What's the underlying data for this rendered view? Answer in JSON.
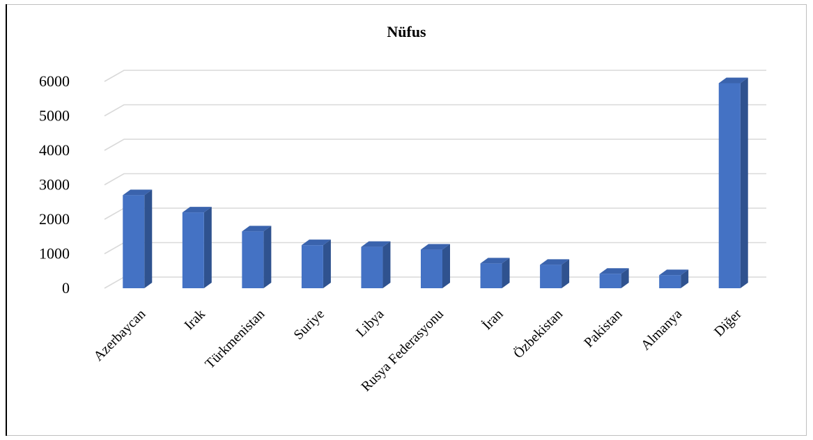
{
  "chart_data": {
    "type": "bar",
    "title": "Nüfus",
    "xlabel": "",
    "ylabel": "",
    "categories": [
      "Azerbaycan",
      "Irak",
      "Türkmenistan",
      "Suriye",
      "Libya",
      "Rusya Federasyonu",
      "İran",
      "Özbekistan",
      "Pakistan",
      "Almanya",
      "Diğer"
    ],
    "values": [
      2700,
      2200,
      1650,
      1250,
      1200,
      1120,
      720,
      680,
      420,
      380,
      5950
    ],
    "ylim": [
      0,
      6000
    ],
    "yticks": [
      "0",
      "1000",
      "2000",
      "3000",
      "4000",
      "5000",
      "6000"
    ],
    "grid": true,
    "legend": "none",
    "style": "3d-column",
    "colors": {
      "bar_front": "#4472c4",
      "bar_side": "#2f528f",
      "bar_top": "#3a63ad",
      "grid": "#d9d9d9"
    }
  }
}
